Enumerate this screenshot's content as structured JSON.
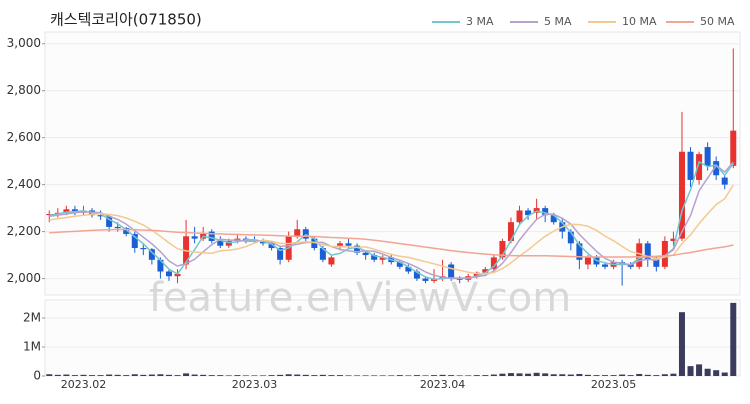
{
  "chart_data": [
    {
      "type": "candlestick",
      "title": "캐스텍코리아(071850)",
      "watermark": "feature.enViewV.com",
      "categories": [
        null,
        null,
        null,
        null,
        "2023.02",
        null,
        null,
        null,
        null,
        null,
        null,
        null,
        null,
        null,
        null,
        null,
        null,
        null,
        null,
        null,
        null,
        null,
        null,
        null,
        "2023.03",
        null,
        null,
        null,
        null,
        null,
        null,
        null,
        null,
        null,
        null,
        null,
        null,
        null,
        null,
        null,
        null,
        null,
        null,
        null,
        null,
        null,
        "2023.04",
        null,
        null,
        null,
        null,
        null,
        null,
        null,
        null,
        null,
        null,
        null,
        null,
        null,
        null,
        null,
        null,
        null,
        null,
        null,
        "2023.05",
        null,
        null,
        null,
        null,
        null,
        null,
        null,
        null,
        null,
        null,
        null,
        null,
        null,
        null
      ],
      "open": [
        2270,
        2275,
        2280,
        2295,
        2280,
        2290,
        2270,
        2265,
        2220,
        2215,
        2190,
        2130,
        2125,
        2080,
        2030,
        2010,
        2060,
        2180,
        2170,
        2200,
        2160,
        2140,
        2160,
        2170,
        2165,
        2160,
        2150,
        2130,
        2080,
        2180,
        2210,
        2170,
        2130,
        2060,
        2140,
        2150,
        2140,
        2110,
        2100,
        2080,
        2090,
        2070,
        2050,
        2030,
        2000,
        1990,
        2000,
        2060,
        2000,
        1995,
        2010,
        2025,
        2040,
        2090,
        2160,
        2240,
        2290,
        2280,
        2300,
        2270,
        2240,
        2200,
        2150,
        2060,
        2090,
        2060,
        2050,
        2070,
        2060,
        2050,
        2150,
        2080,
        2050,
        2160,
        2170,
        2540,
        2420,
        2560,
        2500,
        2430,
        2480
      ],
      "high": [
        2290,
        2300,
        2310,
        2310,
        2310,
        2300,
        2290,
        2270,
        2240,
        2220,
        2200,
        2150,
        2130,
        2090,
        2040,
        2040,
        2250,
        2220,
        2220,
        2210,
        2180,
        2170,
        2190,
        2180,
        2180,
        2170,
        2160,
        2140,
        2200,
        2250,
        2220,
        2180,
        2140,
        2100,
        2160,
        2170,
        2150,
        2120,
        2110,
        2100,
        2100,
        2080,
        2060,
        2040,
        2010,
        2040,
        2080,
        2070,
        2010,
        2020,
        2030,
        2050,
        2100,
        2170,
        2260,
        2310,
        2300,
        2340,
        2310,
        2280,
        2260,
        2210,
        2160,
        2100,
        2100,
        2070,
        2080,
        2080,
        2070,
        2170,
        2160,
        2090,
        2180,
        2200,
        2710,
        2560,
        2540,
        2580,
        2520,
        2440,
        2980
      ],
      "low": [
        2240,
        2260,
        2270,
        2270,
        2270,
        2260,
        2250,
        2200,
        2200,
        2180,
        2110,
        2100,
        2060,
        2000,
        1990,
        1980,
        2040,
        2150,
        2160,
        2150,
        2130,
        2130,
        2150,
        2150,
        2150,
        2140,
        2120,
        2060,
        2070,
        2170,
        2150,
        2120,
        2070,
        2050,
        2120,
        2130,
        2100,
        2080,
        2070,
        2060,
        2060,
        2040,
        2020,
        1990,
        1980,
        1980,
        1990,
        1990,
        1980,
        1985,
        2000,
        2010,
        2030,
        2080,
        2150,
        2230,
        2250,
        2250,
        2240,
        2230,
        2170,
        2120,
        2040,
        2040,
        2050,
        2040,
        2040,
        1970,
        2040,
        2040,
        2050,
        2030,
        2040,
        2140,
        2160,
        2390,
        2400,
        2460,
        2420,
        2380,
        2470
      ],
      "close": [
        2275,
        2280,
        2295,
        2280,
        2290,
        2270,
        2265,
        2220,
        2215,
        2190,
        2130,
        2125,
        2080,
        2030,
        2010,
        2020,
        2180,
        2170,
        2190,
        2160,
        2140,
        2160,
        2170,
        2165,
        2160,
        2150,
        2130,
        2080,
        2180,
        2210,
        2170,
        2130,
        2080,
        2090,
        2150,
        2140,
        2110,
        2100,
        2080,
        2090,
        2070,
        2050,
        2030,
        2000,
        1990,
        2000,
        2010,
        2000,
        1995,
        2010,
        2025,
        2040,
        2090,
        2160,
        2240,
        2290,
        2270,
        2300,
        2270,
        2240,
        2200,
        2150,
        2080,
        2090,
        2060,
        2050,
        2070,
        2060,
        2050,
        2150,
        2080,
        2050,
        2160,
        2170,
        2540,
        2420,
        2530,
        2480,
        2440,
        2400,
        2630
      ],
      "up_color": "#e8322e",
      "down_color": "#1a5fd6",
      "series": [
        {
          "name": "3 MA",
          "color": "#72c7cf",
          "values": [
            2270,
            2275,
            2283,
            2285,
            2288,
            2280,
            2275,
            2252,
            2233,
            2208,
            2178,
            2148,
            2112,
            2078,
            2040,
            2020,
            2070,
            2123,
            2180,
            2173,
            2163,
            2153,
            2157,
            2165,
            2165,
            2158,
            2147,
            2120,
            2130,
            2157,
            2187,
            2170,
            2127,
            2100,
            2107,
            2127,
            2133,
            2117,
            2097,
            2090,
            2080,
            2070,
            2050,
            2027,
            2007,
            1997,
            2000,
            2003,
            2002,
            2002,
            2010,
            2025,
            2052,
            2097,
            2163,
            2230,
            2267,
            2287,
            2280,
            2270,
            2237,
            2197,
            2143,
            2107,
            2077,
            2067,
            2060,
            2060,
            2060,
            2087,
            2093,
            2093,
            2097,
            2127,
            2290,
            2377,
            2497,
            2477,
            2483,
            2440,
            2490
          ]
        },
        {
          "name": "5 MA",
          "color": "#b5a2cf",
          "values": [
            2265,
            2270,
            2275,
            2280,
            2284,
            2283,
            2280,
            2265,
            2252,
            2232,
            2204,
            2176,
            2148,
            2115,
            2075,
            2053,
            2064,
            2082,
            2114,
            2144,
            2168,
            2164,
            2164,
            2159,
            2159,
            2161,
            2155,
            2137,
            2140,
            2146,
            2154,
            2154,
            2154,
            2136,
            2124,
            2118,
            2114,
            2118,
            2116,
            2104,
            2090,
            2078,
            2064,
            2048,
            2028,
            2014,
            2006,
            2000,
            2001,
            2003,
            2008,
            2014,
            2032,
            2065,
            2111,
            2164,
            2210,
            2252,
            2274,
            2274,
            2256,
            2232,
            2188,
            2152,
            2116,
            2086,
            2070,
            2066,
            2058,
            2076,
            2082,
            2078,
            2098,
            2122,
            2200,
            2268,
            2374,
            2428,
            2482,
            2454,
            2496
          ]
        },
        {
          "name": "10 MA",
          "color": "#f3c98f",
          "values": [
            2250,
            2255,
            2260,
            2265,
            2270,
            2274,
            2276,
            2273,
            2268,
            2258,
            2244,
            2228,
            2206,
            2180,
            2152,
            2127,
            2118,
            2113,
            2110,
            2107,
            2118,
            2121,
            2126,
            2136,
            2151,
            2164,
            2159,
            2150,
            2149,
            2154,
            2157,
            2154,
            2145,
            2137,
            2136,
            2135,
            2133,
            2135,
            2125,
            2113,
            2103,
            2095,
            2090,
            2081,
            2072,
            2063,
            2053,
            2043,
            2035,
            2027,
            2021,
            2020,
            2026,
            2042,
            2067,
            2096,
            2122,
            2152,
            2180,
            2202,
            2220,
            2231,
            2230,
            2223,
            2205,
            2181,
            2161,
            2137,
            2115,
            2106,
            2094,
            2084,
            2092,
            2100,
            2149,
            2186,
            2234,
            2276,
            2315,
            2340,
            2398
          ]
        },
        {
          "name": "50 MA",
          "color": "#f2a592",
          "values": [
            2195,
            2197,
            2199,
            2201,
            2203,
            2205,
            2207,
            2208,
            2209,
            2209,
            2208,
            2207,
            2205,
            2203,
            2200,
            2197,
            2196,
            2194,
            2193,
            2191,
            2190,
            2189,
            2188,
            2187,
            2186,
            2185,
            2184,
            2182,
            2181,
            2180,
            2180,
            2179,
            2177,
            2175,
            2174,
            2172,
            2170,
            2167,
            2163,
            2159,
            2154,
            2149,
            2144,
            2139,
            2134,
            2129,
            2124,
            2119,
            2115,
            2111,
            2107,
            2104,
            2101,
            2099,
            2098,
            2097,
            2097,
            2097,
            2097,
            2096,
            2095,
            2094,
            2093,
            2092,
            2092,
            2092,
            2092,
            2092,
            2092,
            2093,
            2094,
            2095,
            2097,
            2099,
            2106,
            2111,
            2118,
            2124,
            2130,
            2135,
            2143
          ]
        }
      ],
      "ylim": [
        1930,
        3050
      ],
      "yticks": [
        {
          "value": 2000,
          "label": "2,000"
        },
        {
          "value": 2200,
          "label": "2,200"
        },
        {
          "value": 2400,
          "label": "2,400"
        },
        {
          "value": 2600,
          "label": "2,600"
        },
        {
          "value": 2800,
          "label": "2,800"
        },
        {
          "value": 3000,
          "label": "3,000"
        }
      ],
      "grid": true
    },
    {
      "type": "bar",
      "color": "#3b3b5c",
      "values": [
        60000,
        40000,
        50000,
        30000,
        40000,
        30000,
        30000,
        50000,
        40000,
        30000,
        60000,
        40000,
        50000,
        60000,
        40000,
        30000,
        90000,
        50000,
        40000,
        30000,
        30000,
        20000,
        30000,
        20000,
        20000,
        20000,
        30000,
        40000,
        60000,
        50000,
        40000,
        30000,
        40000,
        30000,
        30000,
        20000,
        20000,
        20000,
        20000,
        20000,
        20000,
        30000,
        20000,
        30000,
        20000,
        30000,
        40000,
        30000,
        20000,
        20000,
        30000,
        30000,
        50000,
        80000,
        100000,
        90000,
        80000,
        110000,
        90000,
        60000,
        60000,
        50000,
        70000,
        40000,
        30000,
        30000,
        30000,
        50000,
        30000,
        70000,
        40000,
        30000,
        60000,
        80000,
        2200000,
        340000,
        400000,
        250000,
        200000,
        120000,
        2520000
      ],
      "ylim": [
        0,
        2620000
      ],
      "yticks": [
        0,
        {
          "value": 1000000,
          "label": "1M"
        },
        {
          "value": 2000000,
          "label": "2M"
        }
      ],
      "grid": true
    }
  ]
}
